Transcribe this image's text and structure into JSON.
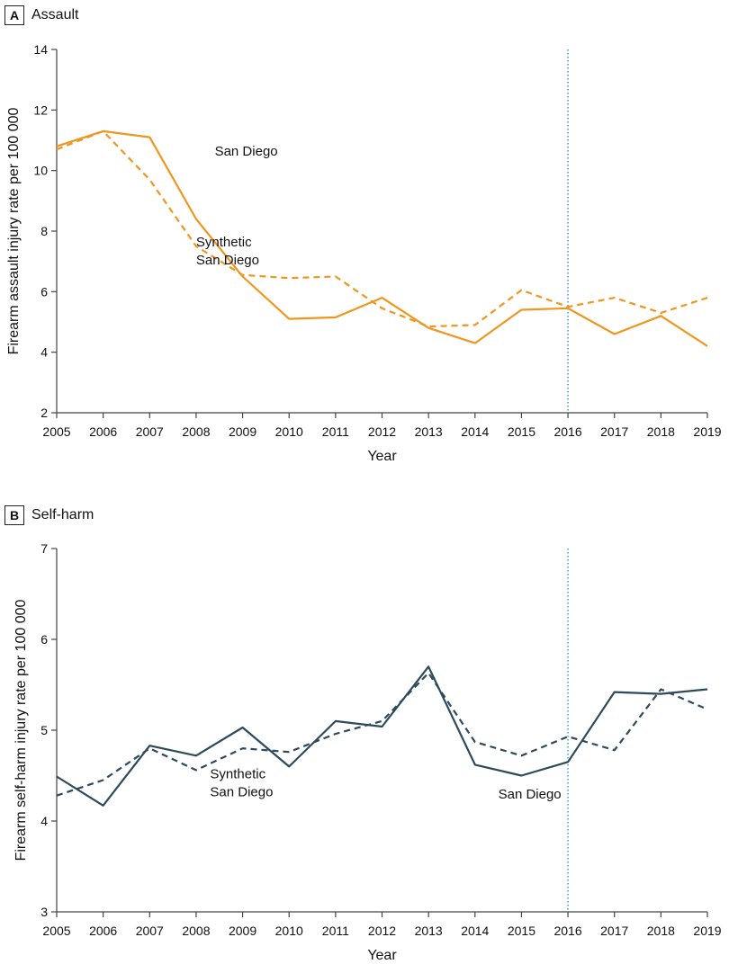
{
  "chart_data": [
    {
      "type": "line",
      "panel_letter": "A",
      "title": "Assault",
      "xlabel": "Year",
      "ylabel": "Firearm assault injury rate per 100 000",
      "x": [
        2005,
        2006,
        2007,
        2008,
        2009,
        2010,
        2011,
        2012,
        2013,
        2014,
        2015,
        2016,
        2017,
        2018,
        2019
      ],
      "xlim": [
        2005,
        2019
      ],
      "ylim": [
        2,
        14
      ],
      "yticks": [
        2,
        4,
        6,
        8,
        10,
        12,
        14
      ],
      "intervention_year": 2016,
      "color": "#f0961e",
      "series": [
        {
          "name": "San Diego",
          "style": "solid",
          "values": [
            10.8,
            11.3,
            11.1,
            8.4,
            6.5,
            5.1,
            5.15,
            5.8,
            4.8,
            4.3,
            5.4,
            5.45,
            4.6,
            5.2,
            4.2
          ]
        },
        {
          "name": "Synthetic San Diego",
          "style": "dashed",
          "values": [
            10.7,
            11.3,
            9.7,
            7.5,
            6.55,
            6.45,
            6.5,
            5.45,
            4.85,
            4.9,
            6.05,
            5.5,
            5.8,
            5.3,
            5.8
          ]
        }
      ],
      "annotations": [
        {
          "lines": [
            "San Diego"
          ],
          "x": 2008.4,
          "y": 10.5
        },
        {
          "lines": [
            "Synthetic",
            "San Diego"
          ],
          "x": 2008.0,
          "y": 7.5
        }
      ]
    },
    {
      "type": "line",
      "panel_letter": "B",
      "title": "Self-harm",
      "xlabel": "Year",
      "ylabel": "Firearm self-harm injury rate per 100 000",
      "x": [
        2005,
        2006,
        2007,
        2008,
        2009,
        2010,
        2011,
        2012,
        2013,
        2014,
        2015,
        2016,
        2017,
        2018,
        2019
      ],
      "xlim": [
        2005,
        2019
      ],
      "ylim": [
        3,
        7
      ],
      "yticks": [
        3,
        4,
        5,
        6,
        7
      ],
      "intervention_year": 2016,
      "color": "#2c4a5c",
      "series": [
        {
          "name": "San Diego",
          "style": "solid",
          "values": [
            4.49,
            4.17,
            4.83,
            4.72,
            5.03,
            4.6,
            5.1,
            5.04,
            5.7,
            4.62,
            4.5,
            4.65,
            5.42,
            5.4,
            5.45
          ]
        },
        {
          "name": "Synthetic San Diego",
          "style": "dashed",
          "values": [
            4.28,
            4.45,
            4.8,
            4.56,
            4.8,
            4.76,
            4.96,
            5.1,
            5.63,
            4.87,
            4.72,
            4.93,
            4.78,
            5.45,
            5.23
          ]
        }
      ],
      "annotations": [
        {
          "lines": [
            "Synthetic",
            "San Diego"
          ],
          "x": 2008.3,
          "y": 4.47
        },
        {
          "lines": [
            "San Diego"
          ],
          "x": 2014.5,
          "y": 4.25
        }
      ]
    }
  ],
  "colors": {
    "reference_line": "#3fa9d6",
    "axis": "#444444"
  }
}
